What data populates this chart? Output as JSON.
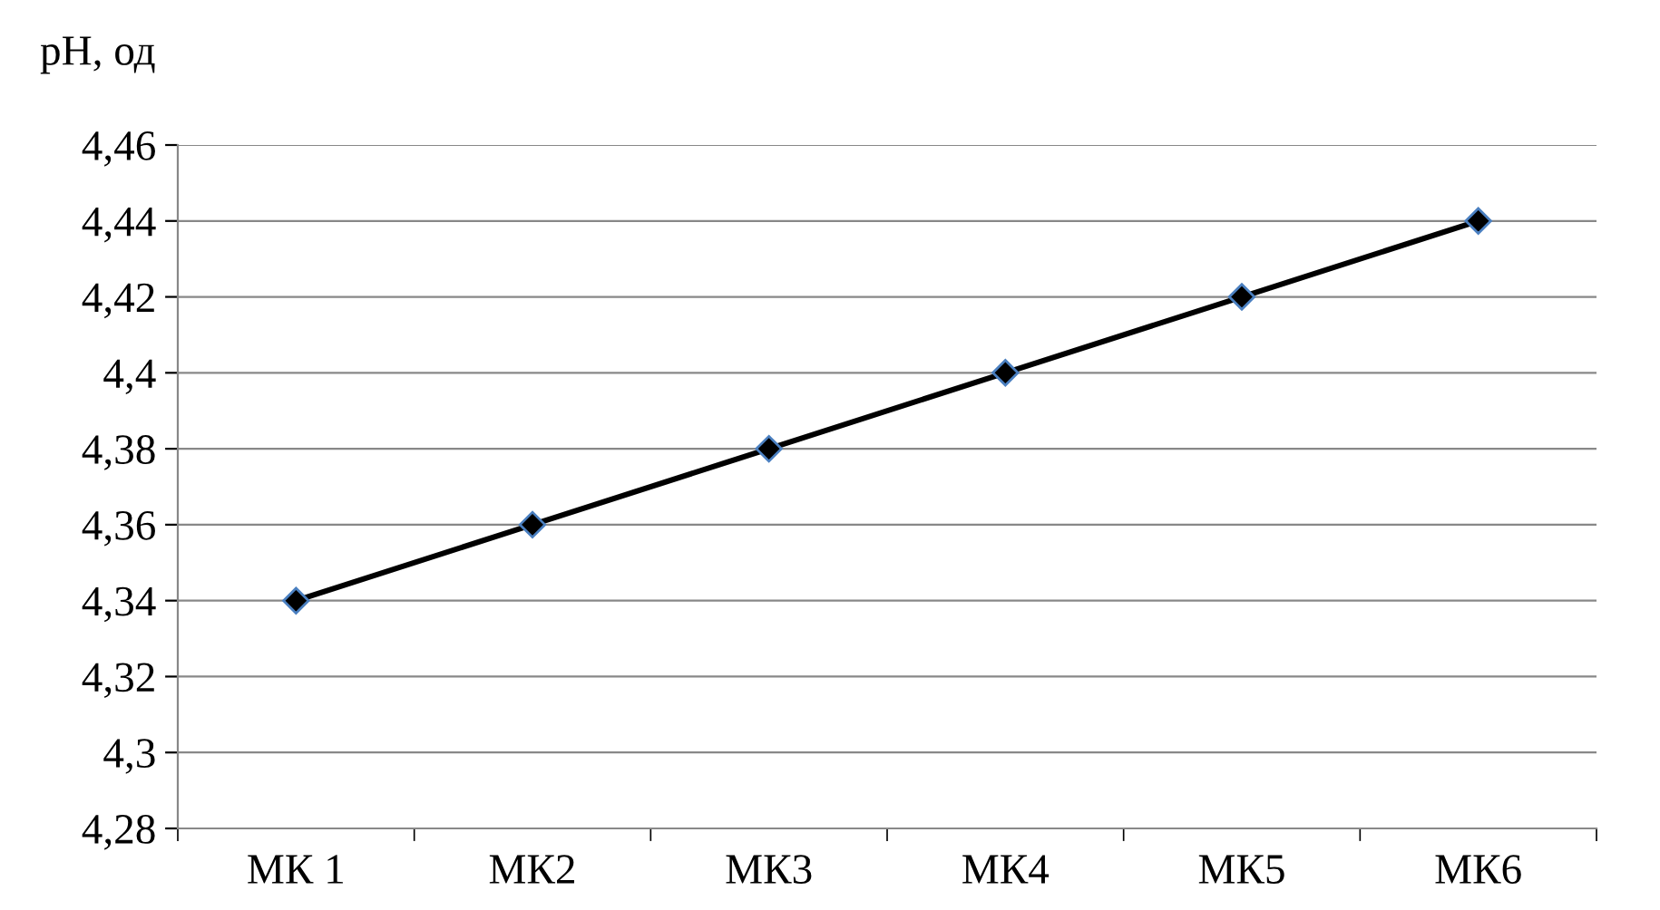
{
  "chart_data": {
    "type": "line",
    "ylabel": "pH, од",
    "categories": [
      "МК 1",
      "МК2",
      "МК3",
      "МК4",
      "МК5",
      "МК6"
    ],
    "series": [
      {
        "color": "#000000",
        "values": [
          4.34,
          4.36,
          4.38,
          4.4,
          4.42,
          4.44
        ]
      }
    ],
    "ylim": [
      4.28,
      4.46
    ],
    "yticks": [
      {
        "value": 4.28,
        "label": "4,28"
      },
      {
        "value": 4.3,
        "label": "4,3"
      },
      {
        "value": 4.32,
        "label": "4,32"
      },
      {
        "value": 4.34,
        "label": "4,34"
      },
      {
        "value": 4.36,
        "label": "4,36"
      },
      {
        "value": 4.38,
        "label": "4,38"
      },
      {
        "value": 4.4,
        "label": "4,4"
      },
      {
        "value": 4.42,
        "label": "4,42"
      },
      {
        "value": 4.44,
        "label": "4,44"
      },
      {
        "value": 4.46,
        "label": "4,46"
      }
    ],
    "grid": "y",
    "marker": "diamond",
    "line_style": "solid",
    "legend": false
  }
}
